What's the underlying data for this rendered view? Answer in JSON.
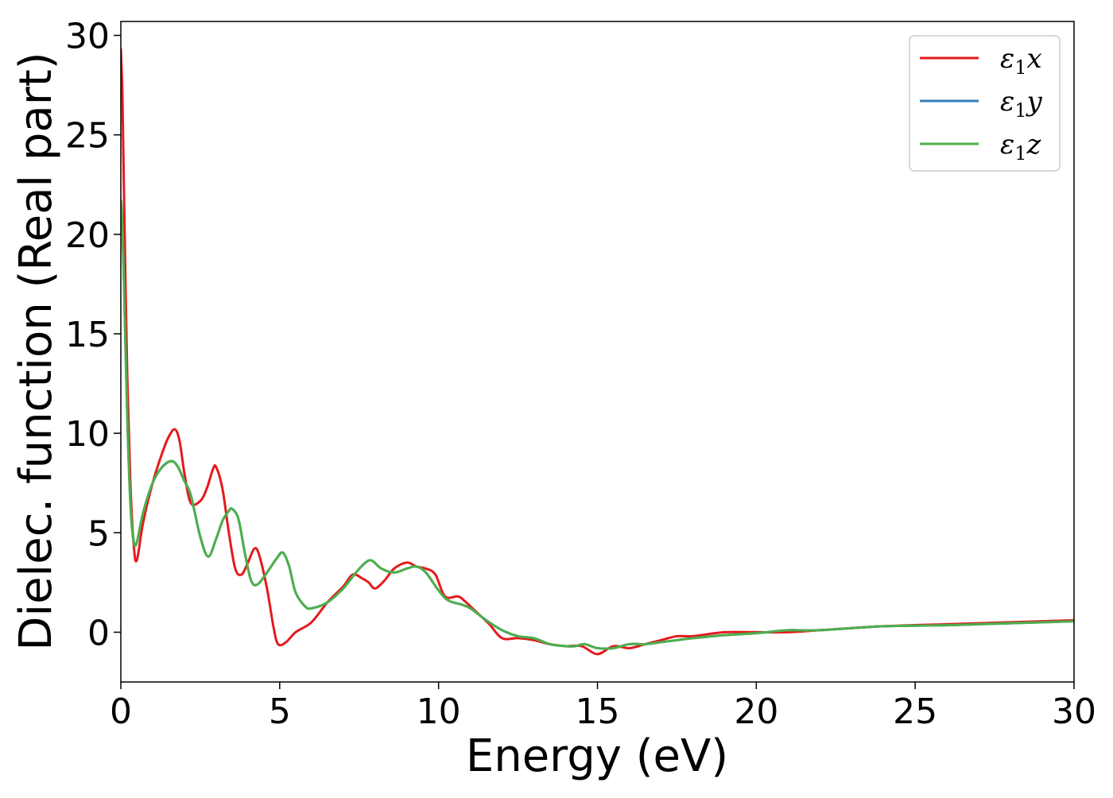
{
  "chart_data": {
    "type": "line",
    "title": "",
    "xlabel": "Energy (eV)",
    "ylabel": "Dielec. function (Real part)",
    "xlim": [
      0,
      30
    ],
    "ylim": [
      -2.5,
      30.7
    ],
    "xticks": [
      0,
      5,
      10,
      15,
      20,
      25,
      30
    ],
    "yticks": [
      0,
      5,
      10,
      15,
      20,
      25,
      30
    ],
    "grid": false,
    "legend_position": "top-right",
    "series": [
      {
        "name": "ε1x",
        "legend_base": "ε",
        "legend_sub": "1",
        "legend_var": "x",
        "color": "#e41a1c",
        "x": [
          0,
          0.05,
          0.1,
          0.2,
          0.3,
          0.4,
          0.5,
          0.7,
          1.0,
          1.3,
          1.5,
          1.7,
          1.85,
          2.0,
          2.2,
          2.5,
          2.7,
          2.9,
          3.0,
          3.2,
          3.4,
          3.6,
          3.8,
          4.0,
          4.2,
          4.35,
          4.6,
          4.8,
          4.95,
          5.2,
          5.5,
          6.0,
          6.5,
          7.0,
          7.3,
          7.6,
          7.8,
          8.0,
          8.3,
          8.6,
          9.0,
          9.3,
          9.6,
          9.9,
          10.2,
          10.6,
          10.8,
          11.2,
          11.6,
          12.0,
          12.5,
          13.0,
          13.5,
          14.0,
          14.5,
          15.0,
          15.5,
          16.0,
          16.5,
          17.0,
          17.5,
          18.0,
          19.0,
          20.0,
          21.0,
          22.0,
          24.0,
          26.0,
          28.0,
          30.0
        ],
        "y": [
          29.3,
          27.0,
          22.0,
          13.0,
          7.5,
          4.5,
          3.6,
          5.5,
          7.5,
          9.0,
          9.8,
          10.2,
          9.6,
          8.0,
          6.5,
          6.6,
          7.2,
          8.2,
          8.3,
          7.2,
          5.0,
          3.2,
          2.9,
          3.5,
          4.2,
          3.9,
          2.2,
          0.3,
          -0.6,
          -0.5,
          0.0,
          0.5,
          1.5,
          2.3,
          2.9,
          2.7,
          2.5,
          2.2,
          2.6,
          3.2,
          3.5,
          3.3,
          3.2,
          2.9,
          1.8,
          1.8,
          1.6,
          1.0,
          0.4,
          -0.3,
          -0.3,
          -0.4,
          -0.6,
          -0.7,
          -0.7,
          -1.1,
          -0.7,
          -0.8,
          -0.6,
          -0.4,
          -0.2,
          -0.2,
          0.0,
          0.0,
          0.0,
          0.1,
          0.3,
          0.4,
          0.5,
          0.6
        ]
      },
      {
        "name": "ε1y",
        "legend_base": "ε",
        "legend_sub": "1",
        "legend_var": "y",
        "color": "#377eb8",
        "x": [
          0,
          0.05,
          0.1,
          0.2,
          0.3,
          0.4,
          0.5,
          0.7,
          1.0,
          1.3,
          1.6,
          1.8,
          2.0,
          2.2,
          2.5,
          2.75,
          3.0,
          3.2,
          3.4,
          3.5,
          3.7,
          3.9,
          4.1,
          4.3,
          4.6,
          4.9,
          5.1,
          5.3,
          5.5,
          5.8,
          6.0,
          6.5,
          7.0,
          7.4,
          7.7,
          7.9,
          8.2,
          8.6,
          9.0,
          9.3,
          9.6,
          10.0,
          10.3,
          10.7,
          11.0,
          11.5,
          12.0,
          12.5,
          13.0,
          13.5,
          14.0,
          14.3,
          14.6,
          15.0,
          15.5,
          16.0,
          16.5,
          17.0,
          17.5,
          18.0,
          19.0,
          20.0,
          21.0,
          22.0,
          24.0,
          26.0,
          28.0,
          30.0
        ],
        "y": [
          21.7,
          20.5,
          17.5,
          11.0,
          6.5,
          4.6,
          4.5,
          6.0,
          7.5,
          8.3,
          8.6,
          8.3,
          7.6,
          6.9,
          4.8,
          3.8,
          4.7,
          5.6,
          6.1,
          6.2,
          5.7,
          4.0,
          2.6,
          2.4,
          3.0,
          3.7,
          4.0,
          3.3,
          2.0,
          1.3,
          1.2,
          1.5,
          2.2,
          3.0,
          3.5,
          3.6,
          3.2,
          3.0,
          3.2,
          3.3,
          3.0,
          2.1,
          1.6,
          1.4,
          1.2,
          0.6,
          0.1,
          -0.2,
          -0.3,
          -0.6,
          -0.7,
          -0.7,
          -0.6,
          -0.8,
          -0.8,
          -0.6,
          -0.6,
          -0.5,
          -0.4,
          -0.3,
          -0.15,
          -0.05,
          0.1,
          0.1,
          0.3,
          0.35,
          0.45,
          0.55
        ]
      },
      {
        "name": "ε1z",
        "legend_base": "ε",
        "legend_sub": "1",
        "legend_var": "z",
        "color": "#4daf4a",
        "x": [
          0,
          0.05,
          0.1,
          0.2,
          0.3,
          0.4,
          0.5,
          0.7,
          1.0,
          1.3,
          1.6,
          1.8,
          2.0,
          2.2,
          2.5,
          2.75,
          3.0,
          3.2,
          3.4,
          3.5,
          3.7,
          3.9,
          4.1,
          4.3,
          4.6,
          4.9,
          5.1,
          5.3,
          5.5,
          5.8,
          6.0,
          6.5,
          7.0,
          7.4,
          7.7,
          7.9,
          8.2,
          8.6,
          9.0,
          9.3,
          9.6,
          10.0,
          10.3,
          10.7,
          11.0,
          11.5,
          12.0,
          12.5,
          13.0,
          13.5,
          14.0,
          14.3,
          14.6,
          15.0,
          15.5,
          16.0,
          16.5,
          17.0,
          17.5,
          18.0,
          19.0,
          20.0,
          21.0,
          22.0,
          24.0,
          26.0,
          28.0,
          30.0
        ],
        "y": [
          21.7,
          20.5,
          17.5,
          11.0,
          6.5,
          4.6,
          4.5,
          6.0,
          7.5,
          8.3,
          8.6,
          8.3,
          7.6,
          6.9,
          4.8,
          3.8,
          4.7,
          5.6,
          6.1,
          6.2,
          5.7,
          4.0,
          2.6,
          2.4,
          3.0,
          3.7,
          4.0,
          3.3,
          2.0,
          1.3,
          1.2,
          1.5,
          2.2,
          3.0,
          3.5,
          3.6,
          3.2,
          3.0,
          3.2,
          3.3,
          3.0,
          2.1,
          1.6,
          1.4,
          1.2,
          0.6,
          0.1,
          -0.2,
          -0.3,
          -0.6,
          -0.7,
          -0.7,
          -0.6,
          -0.8,
          -0.8,
          -0.6,
          -0.6,
          -0.5,
          -0.4,
          -0.3,
          -0.15,
          -0.05,
          0.1,
          0.1,
          0.3,
          0.35,
          0.45,
          0.55
        ]
      }
    ]
  }
}
